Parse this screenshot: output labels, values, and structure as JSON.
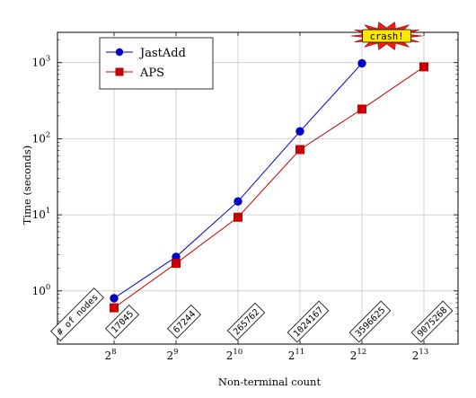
{
  "chart_data": {
    "type": "line",
    "xlabel": "Non-terminal count",
    "ylabel": "Time (seconds)",
    "x": [
      8,
      9,
      10,
      11,
      12,
      13
    ],
    "x_tick_base": "2",
    "x_tick_exponents": [
      "8",
      "9",
      "10",
      "11",
      "12",
      "13"
    ],
    "y_scale": "log",
    "ylim": [
      0.2,
      2500
    ],
    "y_tick_base": "10",
    "y_tick_exponents": [
      "0",
      "1",
      "2",
      "3"
    ],
    "grid": true,
    "legend_position": "top-left",
    "series": [
      {
        "name": "JastAdd",
        "color": "#0000c8",
        "marker": "circle",
        "values": [
          0.8,
          2.8,
          15,
          125,
          980,
          null
        ]
      },
      {
        "name": "APS",
        "color": "#c80000",
        "marker": "square",
        "values": [
          0.6,
          2.3,
          9.3,
          72,
          245,
          880
        ]
      }
    ],
    "node_labels_header": "# of nodes",
    "node_labels": [
      "17045",
      "67244",
      "265762",
      "1024167",
      "3596625",
      "9075268"
    ],
    "annotation": {
      "text": "crash!",
      "at_x": 12.4
    }
  }
}
